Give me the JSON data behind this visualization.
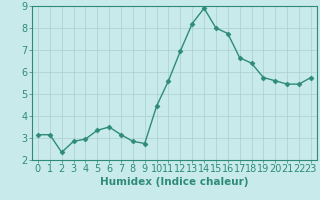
{
  "x": [
    0,
    1,
    2,
    3,
    4,
    5,
    6,
    7,
    8,
    9,
    10,
    11,
    12,
    13,
    14,
    15,
    16,
    17,
    18,
    19,
    20,
    21,
    22,
    23
  ],
  "y": [
    3.15,
    3.15,
    2.35,
    2.85,
    2.95,
    3.35,
    3.5,
    3.15,
    2.85,
    2.75,
    4.45,
    5.6,
    6.95,
    8.2,
    8.9,
    8.0,
    7.75,
    6.65,
    6.4,
    5.75,
    5.6,
    5.45,
    5.45,
    5.75
  ],
  "line_color": "#2e8b7a",
  "marker": "D",
  "marker_size": 2.5,
  "line_width": 1.0,
  "bg_color": "#c8eaea",
  "grid_color": "#aacece",
  "xlabel": "Humidex (Indice chaleur)",
  "xlabel_fontsize": 7.5,
  "tick_fontsize": 7,
  "ylim": [
    2,
    9
  ],
  "xlim": [
    -0.5,
    23.5
  ],
  "yticks": [
    2,
    3,
    4,
    5,
    6,
    7,
    8,
    9
  ],
  "xticks": [
    0,
    1,
    2,
    3,
    4,
    5,
    6,
    7,
    8,
    9,
    10,
    11,
    12,
    13,
    14,
    15,
    16,
    17,
    18,
    19,
    20,
    21,
    22,
    23
  ],
  "axis_color": "#2e8b7a"
}
